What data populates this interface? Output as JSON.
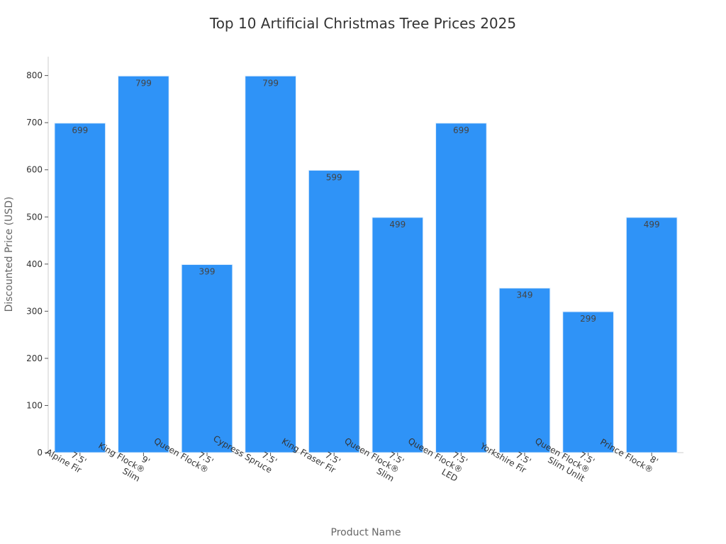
{
  "chart_data": {
    "type": "bar",
    "title": "Top 10 Artificial Christmas Tree Prices 2025",
    "xlabel": "Product Name",
    "ylabel": "Discounted Price (USD)",
    "ylim": [
      0,
      840
    ],
    "yticks": [
      0,
      100,
      200,
      300,
      400,
      500,
      600,
      700,
      800
    ],
    "grid": false,
    "bar_color": "#2f93f7",
    "categories": [
      [
        "7.5'",
        "Alpine Fir"
      ],
      [
        "9'",
        "King Flock®",
        "Slim"
      ],
      [
        "7.5'",
        "Queen Flock®"
      ],
      [
        "7.5'",
        "Cypress Spruce"
      ],
      [
        "7.5'",
        "King Fraser Fir"
      ],
      [
        "7.5'",
        "Queen Flock®",
        "Slim"
      ],
      [
        "7.5'",
        "Queen Flock®",
        "LED"
      ],
      [
        "7.5'",
        "Yorkshire Fir"
      ],
      [
        "7.5'",
        "Queen Flock®",
        "Slim Unlit"
      ],
      [
        "8'",
        "Prince Flock®"
      ]
    ],
    "values": [
      699,
      799,
      399,
      799,
      599,
      499,
      699,
      349,
      299,
      499
    ],
    "data_labels": [
      "699",
      "799",
      "399",
      "799",
      "599",
      "499",
      "699",
      "349",
      "299",
      "499"
    ]
  }
}
